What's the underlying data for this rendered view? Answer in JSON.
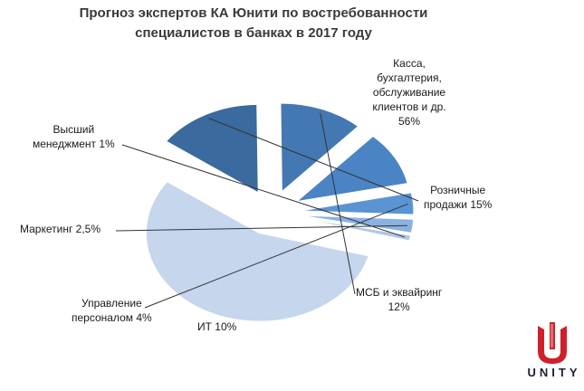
{
  "chart_data": {
    "type": "pie",
    "title_lines": [
      "Прогноз экспертов КА Юнити по востребованности",
      "специалистов в банках в 2017 году"
    ],
    "slices": [
      {
        "label_lines": [
          "Касса,",
          "бухгалтерия,",
          "обслуживание",
          "клиентов и др.",
          "56%"
        ],
        "value": 56,
        "color": "#c5d6ed"
      },
      {
        "label_lines": [
          "Розничные",
          "продажи 15%"
        ],
        "value": 15,
        "color": "#3a6a9e"
      },
      {
        "label_lines": [
          "МСБ и эквайринг",
          "12%"
        ],
        "value": 12,
        "color": "#4478b2"
      },
      {
        "label_lines": [
          "ИТ 10%"
        ],
        "value": 10,
        "color": "#4a84c4"
      },
      {
        "label_lines": [
          "Управление",
          "персоналом 4%"
        ],
        "value": 4,
        "color": "#5a94d2"
      },
      {
        "label_lines": [
          "Маркетинг 2,5%"
        ],
        "value": 2.5,
        "color": "#8ab2e0"
      },
      {
        "label_lines": [
          "Высший",
          "менеджмент 1%"
        ],
        "value": 1,
        "color": "#b0c8e6"
      }
    ]
  },
  "logo": {
    "text": "UNITY",
    "color": "#d0202a"
  }
}
